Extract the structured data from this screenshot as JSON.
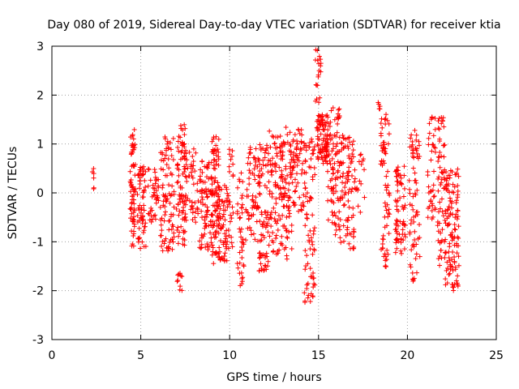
{
  "chart_data": {
    "type": "scatter",
    "title": "Day 080 of 2019, Sidereal Day-to-day VTEC variation (SDTVAR) for receiver ktia",
    "xlabel": "GPS time / hours",
    "ylabel": "SDTVAR / TECUs",
    "xlim": [
      0,
      25
    ],
    "ylim": [
      -3,
      3
    ],
    "xticks": [
      "0",
      "5",
      "10",
      "15",
      "20",
      "25"
    ],
    "yticks": [
      "-3",
      "-2",
      "-1",
      "0",
      "1",
      "2",
      "3"
    ],
    "xtick_values": [
      0,
      5,
      10,
      15,
      20,
      25
    ],
    "ytick_values": [
      -3,
      -2,
      -1,
      0,
      1,
      2,
      3
    ],
    "grid": true,
    "marker": "+",
    "color": "#ff0000",
    "series": [
      {
        "name": "ktia",
        "clusters": [
          {
            "x": [
              2.25,
              2.4
            ],
            "y": [
              -0.1,
              0.5
            ],
            "n": 6
          },
          {
            "x": [
              4.4,
              4.7
            ],
            "y": [
              -1.1,
              1.3
            ],
            "n": 70
          },
          {
            "x": [
              4.8,
              5.3
            ],
            "y": [
              -1.15,
              0.55
            ],
            "n": 60
          },
          {
            "x": [
              5.4,
              6.0
            ],
            "y": [
              -0.6,
              0.5
            ],
            "n": 40
          },
          {
            "x": [
              6.1,
              6.9
            ],
            "y": [
              -1.2,
              1.2
            ],
            "n": 90
          },
          {
            "x": [
              7.0,
              7.5
            ],
            "y": [
              -1.1,
              1.4
            ],
            "n": 80
          },
          {
            "x": [
              7.05,
              7.35
            ],
            "y": [
              -2.0,
              -1.6
            ],
            "n": 10
          },
          {
            "x": [
              7.5,
              8.3
            ],
            "y": [
              -0.6,
              1.0
            ],
            "n": 50
          },
          {
            "x": [
              8.3,
              9.0
            ],
            "y": [
              -1.2,
              0.7
            ],
            "n": 80
          },
          {
            "x": [
              9.0,
              9.4
            ],
            "y": [
              -1.45,
              1.25
            ],
            "n": 90
          },
          {
            "x": [
              9.4,
              9.9
            ],
            "y": [
              -1.4,
              0.2
            ],
            "n": 60
          },
          {
            "x": [
              9.9,
              10.2
            ],
            "y": [
              -1.2,
              0.9
            ],
            "n": 25
          },
          {
            "x": [
              10.4,
              10.8
            ],
            "y": [
              -1.9,
              0.5
            ],
            "n": 40
          },
          {
            "x": [
              10.9,
              11.6
            ],
            "y": [
              -1.0,
              1.1
            ],
            "n": 60
          },
          {
            "x": [
              11.6,
              12.2
            ],
            "y": [
              -1.6,
              1.0
            ],
            "n": 80
          },
          {
            "x": [
              12.2,
              12.9
            ],
            "y": [
              -1.3,
              1.3
            ],
            "n": 80
          },
          {
            "x": [
              12.9,
              13.5
            ],
            "y": [
              -1.4,
              1.35
            ],
            "n": 80
          },
          {
            "x": [
              13.5,
              14.2
            ],
            "y": [
              -0.4,
              1.3
            ],
            "n": 60
          },
          {
            "x": [
              14.2,
              14.8
            ],
            "y": [
              -2.25,
              1.1
            ],
            "n": 80
          },
          {
            "x": [
              14.8,
              15.15
            ],
            "y": [
              1.8,
              2.95
            ],
            "n": 20
          },
          {
            "x": [
              14.9,
              15.5
            ],
            "y": [
              0.6,
              1.6
            ],
            "n": 90
          },
          {
            "x": [
              15.5,
              16.2
            ],
            "y": [
              -0.9,
              1.8
            ],
            "n": 90
          },
          {
            "x": [
              16.2,
              17.0
            ],
            "y": [
              -1.15,
              1.2
            ],
            "n": 90
          },
          {
            "x": [
              17.0,
              17.6
            ],
            "y": [
              -0.4,
              0.8
            ],
            "n": 20
          },
          {
            "x": [
              18.3,
              18.6
            ],
            "y": [
              1.6,
              1.85
            ],
            "n": 5
          },
          {
            "x": [
              18.5,
              19.0
            ],
            "y": [
              -1.55,
              1.7
            ],
            "n": 70
          },
          {
            "x": [
              19.3,
              19.9
            ],
            "y": [
              -1.25,
              0.55
            ],
            "n": 70
          },
          {
            "x": [
              20.1,
              20.7
            ],
            "y": [
              -1.9,
              1.3
            ],
            "n": 70
          },
          {
            "x": [
              21.1,
              21.6
            ],
            "y": [
              -0.6,
              1.6
            ],
            "n": 40
          },
          {
            "x": [
              21.7,
              22.1
            ],
            "y": [
              -1.5,
              1.55
            ],
            "n": 60
          },
          {
            "x": [
              22.1,
              22.9
            ],
            "y": [
              -2.0,
              0.5
            ],
            "n": 120
          }
        ]
      }
    ]
  }
}
